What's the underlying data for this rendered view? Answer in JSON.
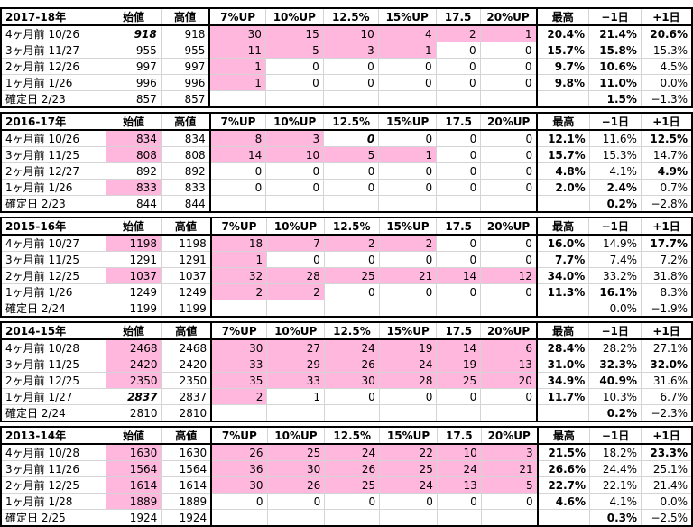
{
  "sections": [
    {
      "header": [
        "2017-18年",
        "始値",
        "高値",
        "7%UP",
        "10%UP",
        "12.5%",
        "15%UP",
        "17.5",
        "20%UP",
        "最高",
        "−1日",
        "+1日"
      ],
      "rows": [
        {
          "label": "4ヶ月前 10/26",
          "start": "918",
          "high": "918",
          "ups": [
            "30",
            "15",
            "10",
            "4",
            "2",
            "1"
          ],
          "max": "20.4%",
          "m1": "21.4%",
          "p1": "20.6%",
          "sty": [
            "it fg",
            "",
            "pk fw",
            "pk fw",
            "pk",
            "pk",
            "pk fw",
            "pk",
            "b",
            "b",
            "b"
          ]
        },
        {
          "label": "3ヶ月前 11/27",
          "start": "955",
          "high": "955",
          "ups": [
            "11",
            "5",
            "3",
            "1",
            "0",
            "0"
          ],
          "max": "15.7%",
          "m1": "15.8%",
          "p1": "15.3%",
          "sty": [
            "",
            "",
            "pk",
            "pk",
            "pk",
            "pk",
            "",
            "",
            "b",
            "b",
            "fg"
          ]
        },
        {
          "label": "2ヶ月前 12/26",
          "start": "997",
          "high": "997",
          "ups": [
            "1",
            "0",
            "0",
            "0",
            "0",
            "0"
          ],
          "max": "9.7%",
          "m1": "10.6%",
          "p1": "4.5%",
          "sty": [
            "",
            "",
            "pk",
            "",
            "",
            "",
            "",
            "",
            "b",
            "b",
            "fg"
          ]
        },
        {
          "label": "1ヶ月前 1/26",
          "start": "996",
          "high": "996",
          "ups": [
            "1",
            "0",
            "0",
            "0",
            "0",
            "0"
          ],
          "max": "9.8%",
          "m1": "11.0%",
          "p1": "0.0%",
          "sty": [
            "",
            "",
            "pk",
            "",
            "",
            "",
            "",
            "",
            "b",
            "b",
            "fg"
          ]
        },
        {
          "label": "確定日 2/23",
          "start": "857",
          "high": "857",
          "ups": [
            "",
            "",
            "",
            "",
            "",
            ""
          ],
          "max": "",
          "m1": "1.5%",
          "p1": "−1.3%",
          "sty": [
            "",
            "",
            "",
            "",
            "",
            "",
            "",
            "",
            "",
            "b",
            "fg"
          ]
        }
      ]
    },
    {
      "header": [
        "2016-17年",
        "始値",
        "高値",
        "7%UP",
        "10%UP",
        "12.5%",
        "15%UP",
        "17.5",
        "20%UP",
        "最高",
        "−1日",
        "+1日"
      ],
      "rows": [
        {
          "label": "4ヶ月前 10/26",
          "start": "834",
          "high": "834",
          "ups": [
            "8",
            "3",
            "0",
            "0",
            "0",
            "0"
          ],
          "max": "12.1%",
          "m1": "11.6%",
          "p1": "12.5%",
          "sty": [
            "pk fw",
            "",
            "pk fw",
            "pk fw",
            "it fg",
            "",
            "",
            "",
            "b",
            "fg",
            "b"
          ]
        },
        {
          "label": "3ヶ月前 11/25",
          "start": "808",
          "high": "808",
          "ups": [
            "14",
            "10",
            "5",
            "1",
            "0",
            "0"
          ],
          "max": "15.7%",
          "m1": "15.3%",
          "p1": "14.7%",
          "sty": [
            "pk fw",
            "",
            "pk",
            "pk",
            "pk",
            "pk",
            "",
            "",
            "b",
            "fg",
            "fg"
          ]
        },
        {
          "label": "2ヶ月前 12/27",
          "start": "892",
          "high": "892",
          "ups": [
            "0",
            "0",
            "0",
            "0",
            "0",
            "0"
          ],
          "max": "4.8%",
          "m1": "4.1%",
          "p1": "4.9%",
          "sty": [
            "",
            "",
            "",
            "",
            "",
            "",
            "",
            "",
            "b",
            "fg",
            "b"
          ]
        },
        {
          "label": "1ヶ月前 1/26",
          "start": "833",
          "high": "833",
          "ups": [
            "0",
            "0",
            "0",
            "0",
            "0",
            "0"
          ],
          "max": "2.0%",
          "m1": "2.4%",
          "p1": "0.7%",
          "sty": [
            "pk fw",
            "",
            "",
            "",
            "",
            "",
            "",
            "",
            "b",
            "b",
            "fg"
          ]
        },
        {
          "label": "確定日 2/23",
          "start": "844",
          "high": "844",
          "ups": [
            "",
            "",
            "",
            "",
            "",
            ""
          ],
          "max": "",
          "m1": "0.2%",
          "p1": "−2.8%",
          "sty": [
            "",
            "",
            "",
            "",
            "",
            "",
            "",
            "",
            "",
            "b",
            "fg"
          ]
        }
      ]
    },
    {
      "header": [
        "2015-16年",
        "始値",
        "高値",
        "7%UP",
        "10%UP",
        "12.5%",
        "15%UP",
        "17.5",
        "20%UP",
        "最高",
        "−1日",
        "+1日"
      ],
      "rows": [
        {
          "label": "4ヶ月前 10/27",
          "start": "1198",
          "high": "1198",
          "ups": [
            "18",
            "7",
            "2",
            "2",
            "0",
            "0"
          ],
          "max": "16.0%",
          "m1": "14.9%",
          "p1": "17.7%",
          "sty": [
            "pk",
            "",
            "pk",
            "pk",
            "pk",
            "pk",
            "",
            "",
            "b",
            "fg",
            "b"
          ]
        },
        {
          "label": "3ヶ月前 11/25",
          "start": "1291",
          "high": "1291",
          "ups": [
            "1",
            "0",
            "0",
            "0",
            "0",
            "0"
          ],
          "max": "7.7%",
          "m1": "7.4%",
          "p1": "7.2%",
          "sty": [
            "",
            "",
            "pk",
            "",
            "",
            "",
            "",
            "",
            "b",
            "fg",
            "fg"
          ]
        },
        {
          "label": "2ヶ月前 12/25",
          "start": "1037",
          "high": "1037",
          "ups": [
            "32",
            "28",
            "25",
            "21",
            "14",
            "12"
          ],
          "max": "34.0%",
          "m1": "33.2%",
          "p1": "31.8%",
          "sty": [
            "pk",
            "",
            "pk",
            "pk",
            "pk",
            "pk",
            "pk",
            "pk",
            "b",
            "fg",
            "fg"
          ]
        },
        {
          "label": "1ヶ月前 1/26",
          "start": "1249",
          "high": "1249",
          "ups": [
            "2",
            "2",
            "0",
            "0",
            "0",
            "0"
          ],
          "max": "11.3%",
          "m1": "16.1%",
          "p1": "8.3%",
          "sty": [
            "",
            "",
            "pk",
            "pk",
            "",
            "",
            "",
            "",
            "b",
            "b",
            "fg"
          ]
        },
        {
          "label": "確定日 2/24",
          "start": "1199",
          "high": "1199",
          "ups": [
            "",
            "",
            "",
            "",
            "",
            ""
          ],
          "max": "",
          "m1": "0.0%",
          "p1": "−1.9%",
          "sty": [
            "",
            "",
            "",
            "",
            "",
            "",
            "",
            "",
            "",
            "fg",
            "fg"
          ]
        }
      ]
    },
    {
      "header": [
        "2014-15年",
        "始値",
        "高値",
        "7%UP",
        "10%UP",
        "12.5%",
        "15%UP",
        "17.5",
        "20%UP",
        "最高",
        "−1日",
        "+1日"
      ],
      "rows": [
        {
          "label": "4ヶ月前 10/28",
          "start": "2468",
          "high": "2468",
          "ups": [
            "30",
            "27",
            "24",
            "19",
            "14",
            "6"
          ],
          "max": "28.4%",
          "m1": "28.2%",
          "p1": "27.1%",
          "sty": [
            "pk fw",
            "",
            "pk fw",
            "pk fw",
            "pk fw",
            "pk fw",
            "pk fw",
            "pk fw",
            "b",
            "fg",
            "fg"
          ]
        },
        {
          "label": "3ヶ月前 11/25",
          "start": "2420",
          "high": "2420",
          "ups": [
            "33",
            "29",
            "26",
            "24",
            "19",
            "13"
          ],
          "max": "31.0%",
          "m1": "32.3%",
          "p1": "32.0%",
          "sty": [
            "pk fw",
            "",
            "pk",
            "pk",
            "pk",
            "pk",
            "pk",
            "pk",
            "b",
            "b",
            "b"
          ]
        },
        {
          "label": "2ヶ月前 12/25",
          "start": "2350",
          "high": "2350",
          "ups": [
            "35",
            "33",
            "30",
            "28",
            "25",
            "20"
          ],
          "max": "34.9%",
          "m1": "40.9%",
          "p1": "31.6%",
          "sty": [
            "pk fw",
            "",
            "pk",
            "pk",
            "pk",
            "pk",
            "pk",
            "pk",
            "b",
            "b",
            "fg"
          ]
        },
        {
          "label": "1ヶ月前 1/27",
          "start": "2837",
          "high": "2837",
          "ups": [
            "2",
            "1",
            "0",
            "0",
            "0",
            "0"
          ],
          "max": "11.7%",
          "m1": "10.3%",
          "p1": "6.7%",
          "sty": [
            "it fg",
            "",
            "pk",
            "",
            "",
            "",
            "",
            "",
            "b",
            "fg",
            "fg"
          ]
        },
        {
          "label": "確定日 2/24",
          "start": "2810",
          "high": "2810",
          "ups": [
            "",
            "",
            "",
            "",
            "",
            ""
          ],
          "max": "",
          "m1": "0.2%",
          "p1": "−2.3%",
          "sty": [
            "",
            "",
            "",
            "",
            "",
            "",
            "",
            "",
            "",
            "b",
            "fg"
          ]
        }
      ]
    },
    {
      "header": [
        "2013-14年",
        "始値",
        "高値",
        "7%UP",
        "10%UP",
        "12.5%",
        "15%UP",
        "17.5",
        "20%UP",
        "最高",
        "−1日",
        "+1日"
      ],
      "rows": [
        {
          "label": "4ヶ月前 10/28",
          "start": "1630",
          "high": "1630",
          "ups": [
            "26",
            "25",
            "24",
            "22",
            "10",
            "3"
          ],
          "max": "21.5%",
          "m1": "18.2%",
          "p1": "23.3%",
          "sty": [
            "pk fw",
            "",
            "pk fw",
            "pk fw",
            "pk",
            "pk",
            "pk",
            "pk",
            "b",
            "fg",
            "b"
          ]
        },
        {
          "label": "3ヶ月前 11/26",
          "start": "1564",
          "high": "1564",
          "ups": [
            "36",
            "30",
            "26",
            "25",
            "24",
            "21"
          ],
          "max": "26.6%",
          "m1": "24.4%",
          "p1": "25.1%",
          "sty": [
            "pk",
            "",
            "pk",
            "pk",
            "pk",
            "pk",
            "pk",
            "pk",
            "b",
            "fg",
            "fg"
          ]
        },
        {
          "label": "2ヶ月前 12/25",
          "start": "1614",
          "high": "1614",
          "ups": [
            "30",
            "26",
            "25",
            "24",
            "13",
            "5"
          ],
          "max": "22.7%",
          "m1": "22.1%",
          "p1": "21.4%",
          "sty": [
            "pk",
            "",
            "pk",
            "pk",
            "pk",
            "pk",
            "pk",
            "pk",
            "b",
            "fg",
            "fg"
          ]
        },
        {
          "label": "1ヶ月前 1/28",
          "start": "1889",
          "high": "1889",
          "ups": [
            "0",
            "0",
            "0",
            "0",
            "0",
            "0"
          ],
          "max": "4.6%",
          "m1": "4.1%",
          "p1": "0.0%",
          "sty": [
            "pk fw",
            "",
            "",
            "",
            "",
            "",
            "",
            "",
            "b",
            "fg",
            "fg"
          ]
        },
        {
          "label": "確定日 2/25",
          "start": "1924",
          "high": "1924",
          "ups": [
            "",
            "",
            "",
            "",
            "",
            ""
          ],
          "max": "",
          "m1": "0.3%",
          "p1": "−2.5%",
          "sty": [
            "",
            "",
            "",
            "",
            "",
            "",
            "",
            "",
            "",
            "b",
            "fg"
          ]
        }
      ]
    }
  ]
}
